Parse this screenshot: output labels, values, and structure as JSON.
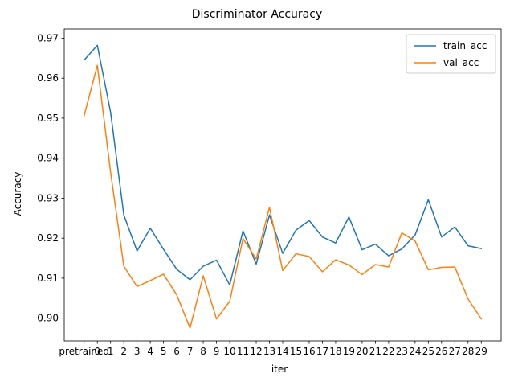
{
  "chart_data": {
    "type": "line",
    "title": "Discriminator Accuracy",
    "xlabel": "iter",
    "ylabel": "Accuracy",
    "categories": [
      "pretrained",
      "0",
      "1",
      "2",
      "3",
      "4",
      "5",
      "6",
      "7",
      "8",
      "9",
      "10",
      "11",
      "12",
      "13",
      "14",
      "15",
      "16",
      "17",
      "18",
      "19",
      "20",
      "21",
      "22",
      "23",
      "24",
      "25",
      "26",
      "27",
      "28",
      "29"
    ],
    "ylim": [
      0.8943,
      0.9723
    ],
    "yticks": [
      0.9,
      0.91,
      0.92,
      0.93,
      0.94,
      0.95,
      0.96,
      0.97
    ],
    "ytick_labels": [
      "0.90",
      "0.91",
      "0.92",
      "0.93",
      "0.94",
      "0.95",
      "0.96",
      "0.97"
    ],
    "grid": false,
    "legend_position": "upper right",
    "series": [
      {
        "name": "train_acc",
        "color": "#1f77b4",
        "values": [
          0.9645,
          0.9682,
          0.9515,
          0.9258,
          0.9168,
          0.9225,
          0.9172,
          0.9122,
          0.9096,
          0.913,
          0.9145,
          0.9083,
          0.9218,
          0.9135,
          0.9258,
          0.9162,
          0.922,
          0.9244,
          0.9203,
          0.9188,
          0.9253,
          0.9171,
          0.9185,
          0.9156,
          0.9173,
          0.9208,
          0.9296,
          0.9203,
          0.9228,
          0.9181,
          0.9174
        ]
      },
      {
        "name": "val_acc",
        "color": "#ff7f0e",
        "values": [
          0.9506,
          0.9632,
          0.9365,
          0.913,
          0.9079,
          0.9094,
          0.911,
          0.9058,
          0.8975,
          0.9106,
          0.8998,
          0.9042,
          0.9199,
          0.9148,
          0.9277,
          0.9119,
          0.9161,
          0.9154,
          0.9116,
          0.9146,
          0.9133,
          0.9109,
          0.9134,
          0.9128,
          0.9213,
          0.9193,
          0.9121,
          0.9127,
          0.9128,
          0.9048,
          0.8998
        ]
      }
    ]
  }
}
